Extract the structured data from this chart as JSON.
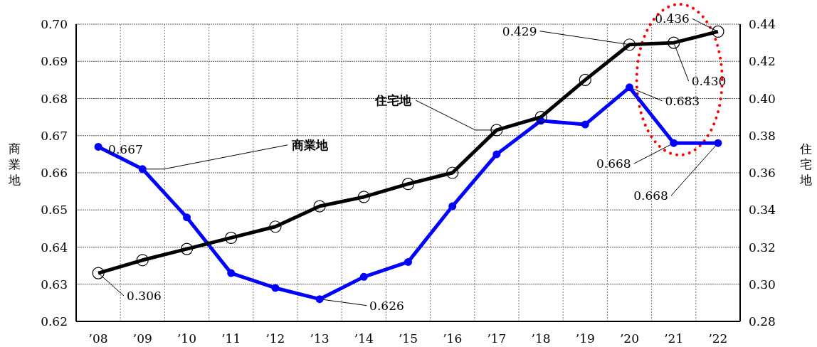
{
  "chart_data": {
    "type": "line",
    "ylabel": "商業地",
    "y2label": "住宅地",
    "categories": [
      "’08",
      "’09",
      "’10",
      "’11",
      "’12",
      "’13",
      "’14",
      "’15",
      "’16",
      "’17",
      "’18",
      "’19",
      "’20",
      "’21",
      "’22"
    ],
    "series": [
      {
        "name": "商業地",
        "color": "#0000ff",
        "marker": "circle",
        "values": [
          0.667,
          0.661,
          0.648,
          0.633,
          0.629,
          0.626,
          0.632,
          0.636,
          0.651,
          0.665,
          0.674,
          0.673,
          0.683,
          0.668,
          0.668
        ],
        "value_labels": [
          "0.667",
          null,
          null,
          null,
          null,
          "0.626",
          null,
          null,
          null,
          null,
          null,
          null,
          "0.683",
          "0.668",
          "0.668"
        ]
      },
      {
        "name": "住宅地",
        "color": "#000000",
        "marker": "circle",
        "axis": "y2",
        "values": [
          0.306,
          0.313,
          0.319,
          0.325,
          0.331,
          0.342,
          0.347,
          0.354,
          0.36,
          0.383,
          0.39,
          0.41,
          0.429,
          0.43,
          0.436
        ],
        "value_labels": [
          "0.306",
          null,
          null,
          null,
          null,
          null,
          null,
          null,
          null,
          null,
          null,
          null,
          "0.429",
          "0.430",
          "0.436"
        ]
      }
    ],
    "ylim": [
      0.62,
      0.7
    ],
    "yticks": [
      0.62,
      0.63,
      0.64,
      0.65,
      0.66,
      0.67,
      0.68,
      0.69,
      {
        "value": 0.7,
        "label": "0.70"
      }
    ],
    "y2lim": [
      0.28,
      0.44
    ],
    "y2ticks": [
      0.28,
      {
        "value": 0.3,
        "label": "0.30"
      },
      0.32,
      0.34,
      0.36,
      0.38,
      {
        "value": 0.4,
        "label": "0.40"
      },
      0.42,
      0.44
    ],
    "grid": true
  }
}
